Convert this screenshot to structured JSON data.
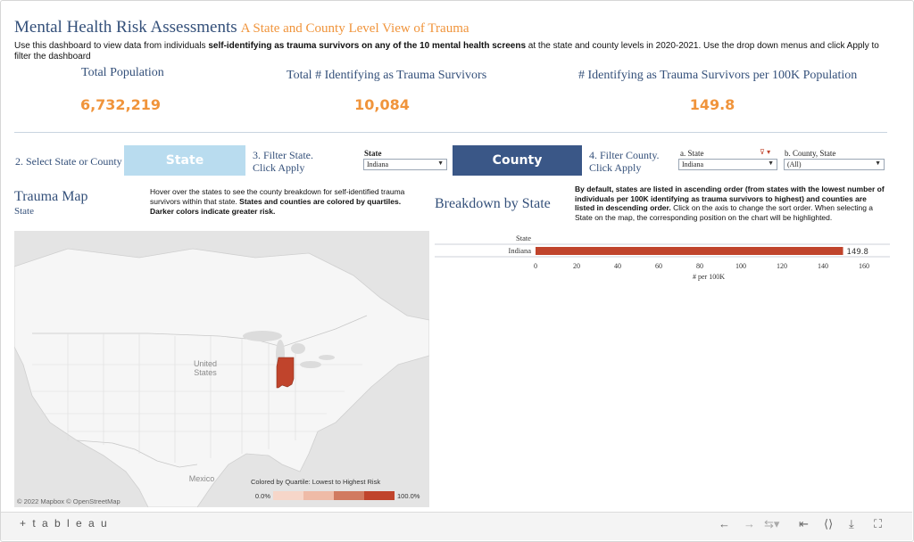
{
  "header": {
    "title": "Mental Health Risk Assessments",
    "subtitle": "A State and County Level View of Trauma",
    "intro_pre": "Use this dashboard to view data from individuals ",
    "intro_bold": "self-identifying as trauma survivors on any of the 10 mental health screens",
    "intro_post": " at the state and county levels in 2020-2021. Use the drop down menus and click Apply to filter the dashboard"
  },
  "kpis": {
    "total_population_label": "Total Population",
    "total_population_value": "6,732,219",
    "total_trauma_label": "Total # Identifying as Trauma Survivors",
    "total_trauma_value": "10,084",
    "per100k_label": "# Identifying as Trauma Survivors per 100K Population",
    "per100k_value": "149.8"
  },
  "filters": {
    "step2_label": "2. Select State or County",
    "state_button": "State",
    "step3_line1": "3. Filter State.",
    "step3_line2": "Click Apply",
    "state_dd_label": "State",
    "state_dd_value": "Indiana",
    "county_button": "County",
    "step4_line1": "4. Filter County.",
    "step4_line2": "Click Apply",
    "a_state_label": "a. State",
    "a_state_value": "Indiana",
    "b_county_label": "b. County, State",
    "b_county_value": "(All)"
  },
  "map": {
    "title": "Trauma Map",
    "subtitle": "State",
    "hover_pre": "Hover over the states to see the county breakdown for self-identified trauma survivors within that state. ",
    "hover_bold": "States and counties are colored by quartiles. Darker colors indicate greater risk.",
    "label_us_1": "United",
    "label_us_2": "States",
    "label_mexico": "Mexico",
    "attribution": "© 2022 Mapbox  © OpenStreetMap",
    "legend_title": "Colored by Quartile: Lowest to Highest Risk",
    "legend_min": "0.0%",
    "legend_max": "100.0%",
    "highlight_color": "#c0442c"
  },
  "breakdown": {
    "title": "Breakdown by State",
    "note_bold1": "By default, states are listed in ascending order (from states with the lowest number of individuals per 100K identifying as trauma survivors to highest) and counties are listed in descending order.",
    "note_rest": " Click on the axis to change the sort order. When selecting a State on the map, the corresponding position on the chart will be highlighted."
  },
  "chart_data": {
    "type": "bar",
    "orientation": "horizontal",
    "row_header": "State",
    "categories": [
      "Indiana"
    ],
    "values": [
      149.8
    ],
    "value_labels": [
      "149.8"
    ],
    "xlabel": "# per 100K",
    "xlim": [
      0,
      160
    ],
    "ticks": [
      0,
      20,
      40,
      60,
      80,
      100,
      120,
      140,
      160
    ],
    "bar_color": "#c0442c"
  },
  "toolbar": {
    "logo": "+ t a b l e a u",
    "undo_icon": "undo-arrow-icon",
    "redo_icon": "redo-arrow-icon",
    "revert_icon": "revert-icon",
    "first_icon": "revert-to-start-icon",
    "share_icon": "share-icon",
    "download_icon": "download-icon",
    "fullscreen_icon": "fullscreen-icon"
  }
}
